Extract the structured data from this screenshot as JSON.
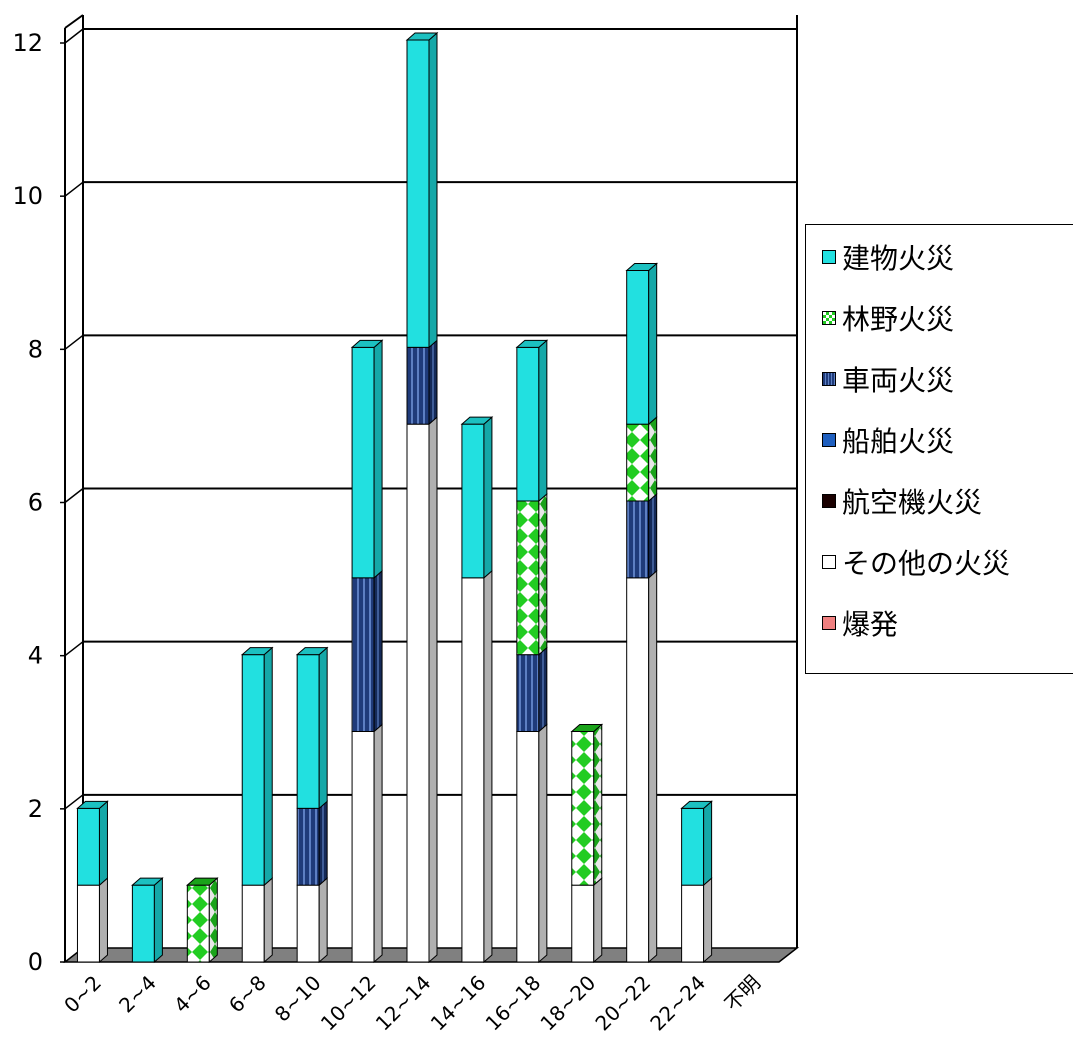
{
  "chart_data": {
    "type": "bar",
    "stacked": true,
    "categories": [
      "0~2",
      "2~4",
      "4~6",
      "6~8",
      "8~10",
      "10~12",
      "12~14",
      "14~16",
      "16~18",
      "18~20",
      "20~22",
      "22~24",
      "不明"
    ],
    "ylim": [
      0,
      12
    ],
    "yticks": [
      0,
      2,
      4,
      6,
      8,
      10,
      12
    ],
    "grid": true,
    "legend_position": "right",
    "series": [
      {
        "name": "その他の火災",
        "color": "#ffffff",
        "pattern": "solid",
        "values": [
          1,
          0,
          0,
          1,
          1,
          3,
          7,
          5,
          3,
          1,
          5,
          1,
          0
        ]
      },
      {
        "name": "爆発",
        "color": "#f08080",
        "pattern": "solid",
        "values": [
          0,
          0,
          0,
          0,
          0,
          0,
          0,
          0,
          0,
          0,
          0,
          0,
          0
        ]
      },
      {
        "name": "航空機火災",
        "color": "#1a0000",
        "pattern": "solid",
        "values": [
          0,
          0,
          0,
          0,
          0,
          0,
          0,
          0,
          0,
          0,
          0,
          0,
          0
        ]
      },
      {
        "name": "船舶火災",
        "color": "#1f5fbf",
        "pattern": "solid",
        "values": [
          0,
          0,
          0,
          0,
          0,
          0,
          0,
          0,
          0,
          0,
          0,
          0,
          0
        ]
      },
      {
        "name": "車両火災",
        "color": "#1f3b7a",
        "pattern": "vstripe",
        "values": [
          0,
          0,
          0,
          0,
          1,
          2,
          1,
          0,
          1,
          0,
          1,
          0,
          0
        ]
      },
      {
        "name": "林野火災",
        "color": "#22cc22",
        "pattern": "checker",
        "values": [
          0,
          0,
          1,
          0,
          0,
          0,
          0,
          0,
          2,
          2,
          1,
          0,
          0
        ]
      },
      {
        "name": "建物火災",
        "color": "#22e0e0",
        "pattern": "solid",
        "values": [
          1,
          1,
          0,
          3,
          2,
          3,
          4,
          2,
          2,
          0,
          2,
          1,
          0
        ]
      }
    ],
    "legend_order": [
      "建物火災",
      "林野火災",
      "車両火災",
      "船舶火災",
      "航空機火災",
      "その他の火災",
      "爆発"
    ]
  }
}
